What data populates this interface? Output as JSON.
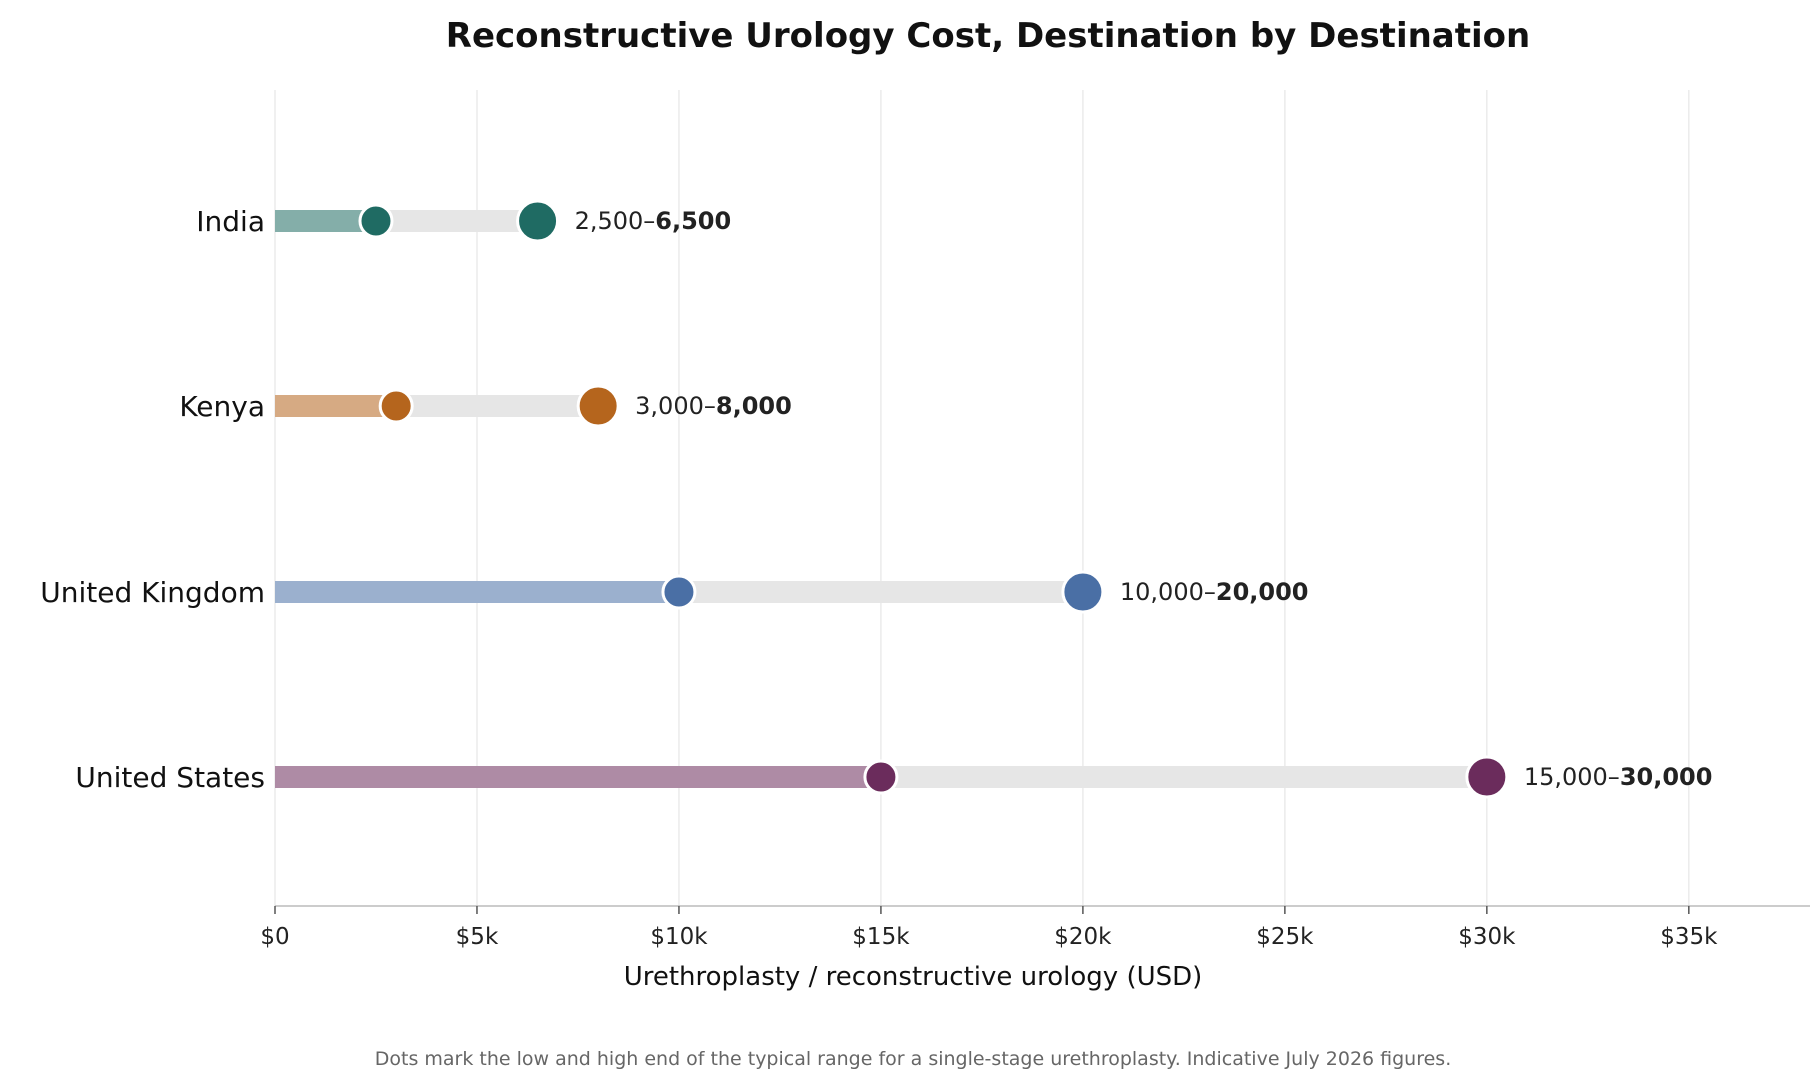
{
  "chart_data": {
    "type": "dumbbell",
    "title": "Reconstructive Urology Cost, Destination by Destination",
    "xlabel": "Urethroplasty / reconstructive urology (USD)",
    "ylabel": "",
    "xlim": [
      0,
      38000
    ],
    "x_ticks": [
      0,
      5000,
      10000,
      15000,
      20000,
      25000,
      30000,
      35000
    ],
    "x_tick_labels": [
      "$0",
      "$5k",
      "$10k",
      "$15k",
      "$20k",
      "$25k",
      "$30k",
      "$35k"
    ],
    "grid": "vertical",
    "categories": [
      "India",
      "Kenya",
      "United Kingdom",
      "United States"
    ],
    "low": [
      2500,
      3000,
      10000,
      15000
    ],
    "high": [
      6500,
      8000,
      20000,
      30000
    ],
    "data_labels": [
      {
        "low": "2,500–",
        "high": "6,500"
      },
      {
        "low": "3,000–",
        "high": "8,000"
      },
      {
        "low": "10,000–",
        "high": "20,000"
      },
      {
        "low": "15,000–",
        "high": "30,000"
      }
    ],
    "colors": [
      "#1f6b63",
      "#b5651d",
      "#4a6fa5",
      "#6b2c5c"
    ],
    "footnote": "Dots mark the low and high end of the typical range for a single-stage urethroplasty. Indicative July 2026 figures."
  }
}
